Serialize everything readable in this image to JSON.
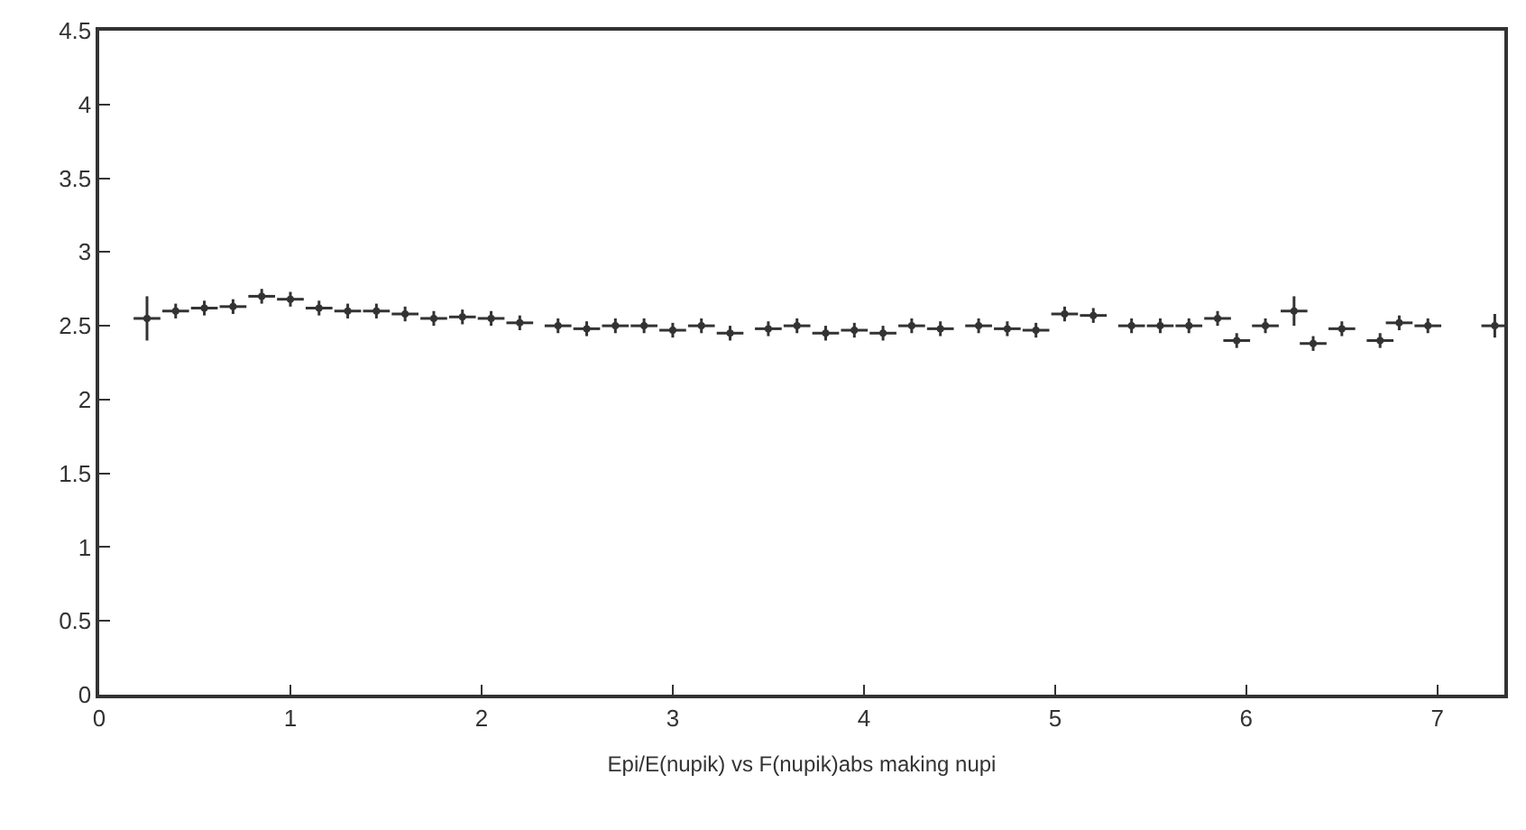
{
  "chart_data": {
    "type": "scatter",
    "xlabel": "Epi/E(nupik) vs F(nupik)abs making nupi",
    "x": [
      0.25,
      0.4,
      0.55,
      0.7,
      0.85,
      1.0,
      1.15,
      1.3,
      1.45,
      1.6,
      1.75,
      1.9,
      2.05,
      2.2,
      2.4,
      2.55,
      2.7,
      2.85,
      3.0,
      3.15,
      3.3,
      3.5,
      3.65,
      3.8,
      3.95,
      4.1,
      4.25,
      4.4,
      4.6,
      4.75,
      4.9,
      5.05,
      5.2,
      5.4,
      5.55,
      5.7,
      5.85,
      5.95,
      6.1,
      6.25,
      6.35,
      6.5,
      6.7,
      6.8,
      6.95,
      7.3
    ],
    "values": [
      2.55,
      2.6,
      2.62,
      2.63,
      2.7,
      2.68,
      2.62,
      2.6,
      2.6,
      2.58,
      2.55,
      2.56,
      2.55,
      2.52,
      2.5,
      2.48,
      2.5,
      2.5,
      2.47,
      2.5,
      2.45,
      2.48,
      2.5,
      2.45,
      2.47,
      2.45,
      2.5,
      2.48,
      2.5,
      2.48,
      2.47,
      2.58,
      2.57,
      2.5,
      2.5,
      2.5,
      2.55,
      2.4,
      2.5,
      2.6,
      2.38,
      2.48,
      2.4,
      2.52,
      2.5,
      2.5
    ],
    "errors": [
      0.15,
      0.05,
      0.05,
      0.05,
      0.05,
      0.05,
      0.05,
      0.05,
      0.05,
      0.05,
      0.05,
      0.05,
      0.05,
      0.05,
      0.05,
      0.05,
      0.05,
      0.05,
      0.05,
      0.05,
      0.05,
      0.05,
      0.05,
      0.05,
      0.05,
      0.05,
      0.05,
      0.05,
      0.05,
      0.05,
      0.05,
      0.05,
      0.05,
      0.05,
      0.05,
      0.05,
      0.05,
      0.05,
      0.05,
      0.1,
      0.05,
      0.05,
      0.05,
      0.05,
      0.05,
      0.08
    ],
    "xerrors": [
      0.07,
      0.07,
      0.07,
      0.07,
      0.07,
      0.07,
      0.07,
      0.07,
      0.07,
      0.07,
      0.07,
      0.07,
      0.07,
      0.07,
      0.07,
      0.07,
      0.07,
      0.07,
      0.07,
      0.07,
      0.07,
      0.07,
      0.07,
      0.07,
      0.07,
      0.07,
      0.07,
      0.07,
      0.07,
      0.07,
      0.07,
      0.07,
      0.07,
      0.07,
      0.07,
      0.07,
      0.07,
      0.07,
      0.07,
      0.07,
      0.07,
      0.07,
      0.07,
      0.07,
      0.07,
      0.07
    ],
    "color": "#333333",
    "marker": "circle",
    "xlim": [
      0,
      7.35
    ],
    "xticks": [
      0,
      1,
      2,
      3,
      4,
      5,
      6,
      7
    ],
    "ylim": [
      0,
      4.5
    ],
    "yticks": [
      0,
      0.5,
      1,
      1.5,
      2,
      2.5,
      3,
      3.5,
      4,
      4.5
    ]
  }
}
